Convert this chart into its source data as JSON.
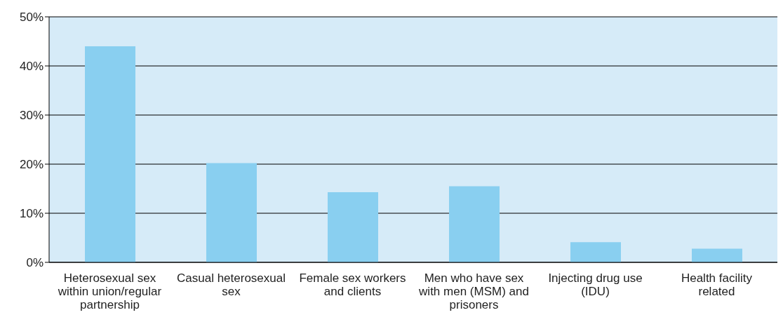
{
  "chart_data": {
    "type": "bar",
    "categories": [
      "Heterosexual sex within union/regular partnership",
      "Casual heterosexual sex",
      "Female sex workers and clients",
      "Men who have sex with men (MSM) and prisoners",
      "Injecting drug use (IDU)",
      "Health facility related"
    ],
    "values": [
      44.0,
      20.2,
      14.3,
      15.5,
      4.1,
      2.8
    ],
    "color": "#89cff0",
    "ylim": [
      0,
      50
    ],
    "yticks": [
      {
        "value": 0,
        "label": "0%"
      },
      {
        "value": 10,
        "label": "10%"
      },
      {
        "value": 20,
        "label": "20%"
      },
      {
        "value": 30,
        "label": "30%"
      },
      {
        "value": 40,
        "label": "40%"
      },
      {
        "value": 50,
        "label": "50%"
      }
    ],
    "grid": "y"
  }
}
